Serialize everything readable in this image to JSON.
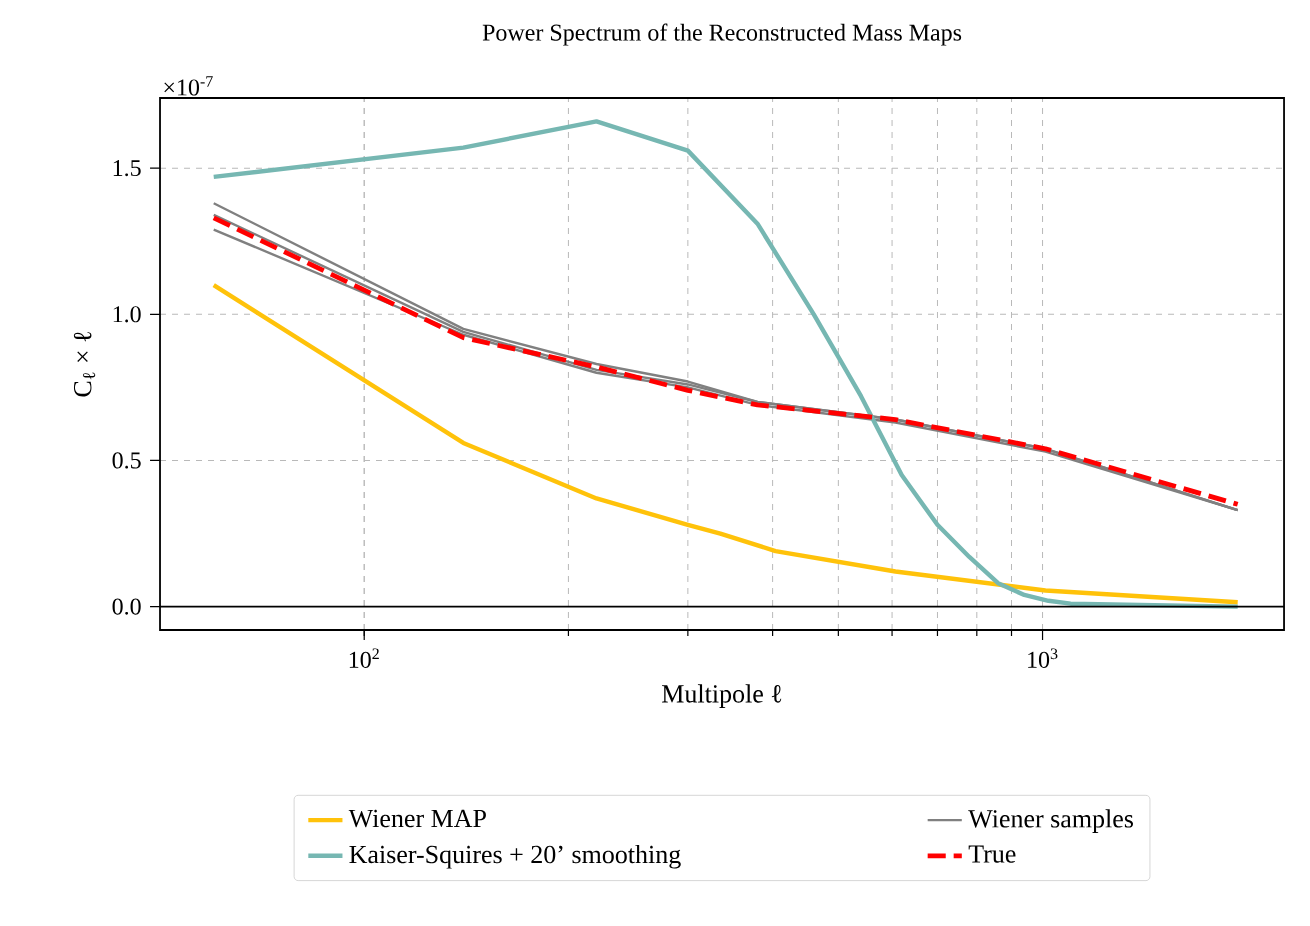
{
  "chart_data": {
    "type": "line",
    "title": "Power Spectrum of the Reconstructed Mass Maps",
    "xlabel": "Multipole ℓ",
    "ylabel": "C$_{ℓ}$ × ℓ",
    "log": "x",
    "grid": true,
    "legend": "bottom",
    "xlim": [
      50,
      2270
    ],
    "ylim": [
      -0.08,
      1.74
    ],
    "xticks": [
      {
        "value": 100,
        "label": "10$^{2}$"
      },
      {
        "value": 1000,
        "label": "10$^{3}$"
      }
    ],
    "yticks": [
      {
        "value": 0,
        "label": "0.0"
      },
      {
        "value": 0.5,
        "label": "0.5"
      },
      {
        "value": 1,
        "label": "1.0"
      },
      {
        "value": 1.5,
        "label": "1.5"
      }
    ],
    "annotations": [
      "×10$^{-7}$"
    ],
    "ref_lines": [
      {
        "axis": "y",
        "value": 0,
        "color": "#000000"
      }
    ],
    "series": [
      {
        "name": "Wiener MAP",
        "color": "#ffc20a",
        "x": [
          60,
          140,
          220,
          300,
          335,
          404,
          607,
          1010,
          1940
        ],
        "values": [
          1.1,
          0.56,
          0.37,
          0.28,
          0.25,
          0.19,
          0.12,
          0.055,
          0.015
        ]
      },
      {
        "name": "Wiener samples",
        "color": "#808080",
        "x": [
          60,
          140,
          220,
          300,
          380,
          607,
          1010,
          1940
        ],
        "values": [
          1.38,
          0.95,
          0.83,
          0.77,
          0.7,
          0.64,
          0.54,
          0.33
        ]
      },
      {
        "color": "#808080",
        "x": [
          60,
          140,
          220,
          300,
          380,
          607,
          1010,
          1940
        ],
        "values": [
          1.34,
          0.94,
          0.81,
          0.76,
          0.7,
          0.64,
          0.54,
          0.33
        ]
      },
      {
        "color": "#808080",
        "x": [
          60,
          140,
          220,
          300,
          380,
          607,
          1010,
          1940
        ],
        "values": [
          1.29,
          0.93,
          0.8,
          0.75,
          0.69,
          0.63,
          0.53,
          0.33
        ]
      },
      {
        "name": "Kaiser-Squires + 20’ smoothing",
        "color": "#76b7b2",
        "x": [
          60,
          140,
          220,
          300,
          380,
          460,
          540,
          620,
          700,
          780,
          860,
          940,
          1020,
          1100,
          1940
        ],
        "values": [
          1.47,
          1.57,
          1.66,
          1.56,
          1.31,
          1.0,
          0.72,
          0.45,
          0.28,
          0.17,
          0.08,
          0.04,
          0.02,
          0.01,
          0.0
        ]
      },
      {
        "name": "True",
        "color": "#ff0000",
        "line_style": "dashed",
        "x": [
          60,
          140,
          220,
          300,
          380,
          607,
          1010,
          1940
        ],
        "values": [
          1.33,
          0.92,
          0.82,
          0.74,
          0.69,
          0.64,
          0.54,
          0.35
        ]
      }
    ]
  }
}
